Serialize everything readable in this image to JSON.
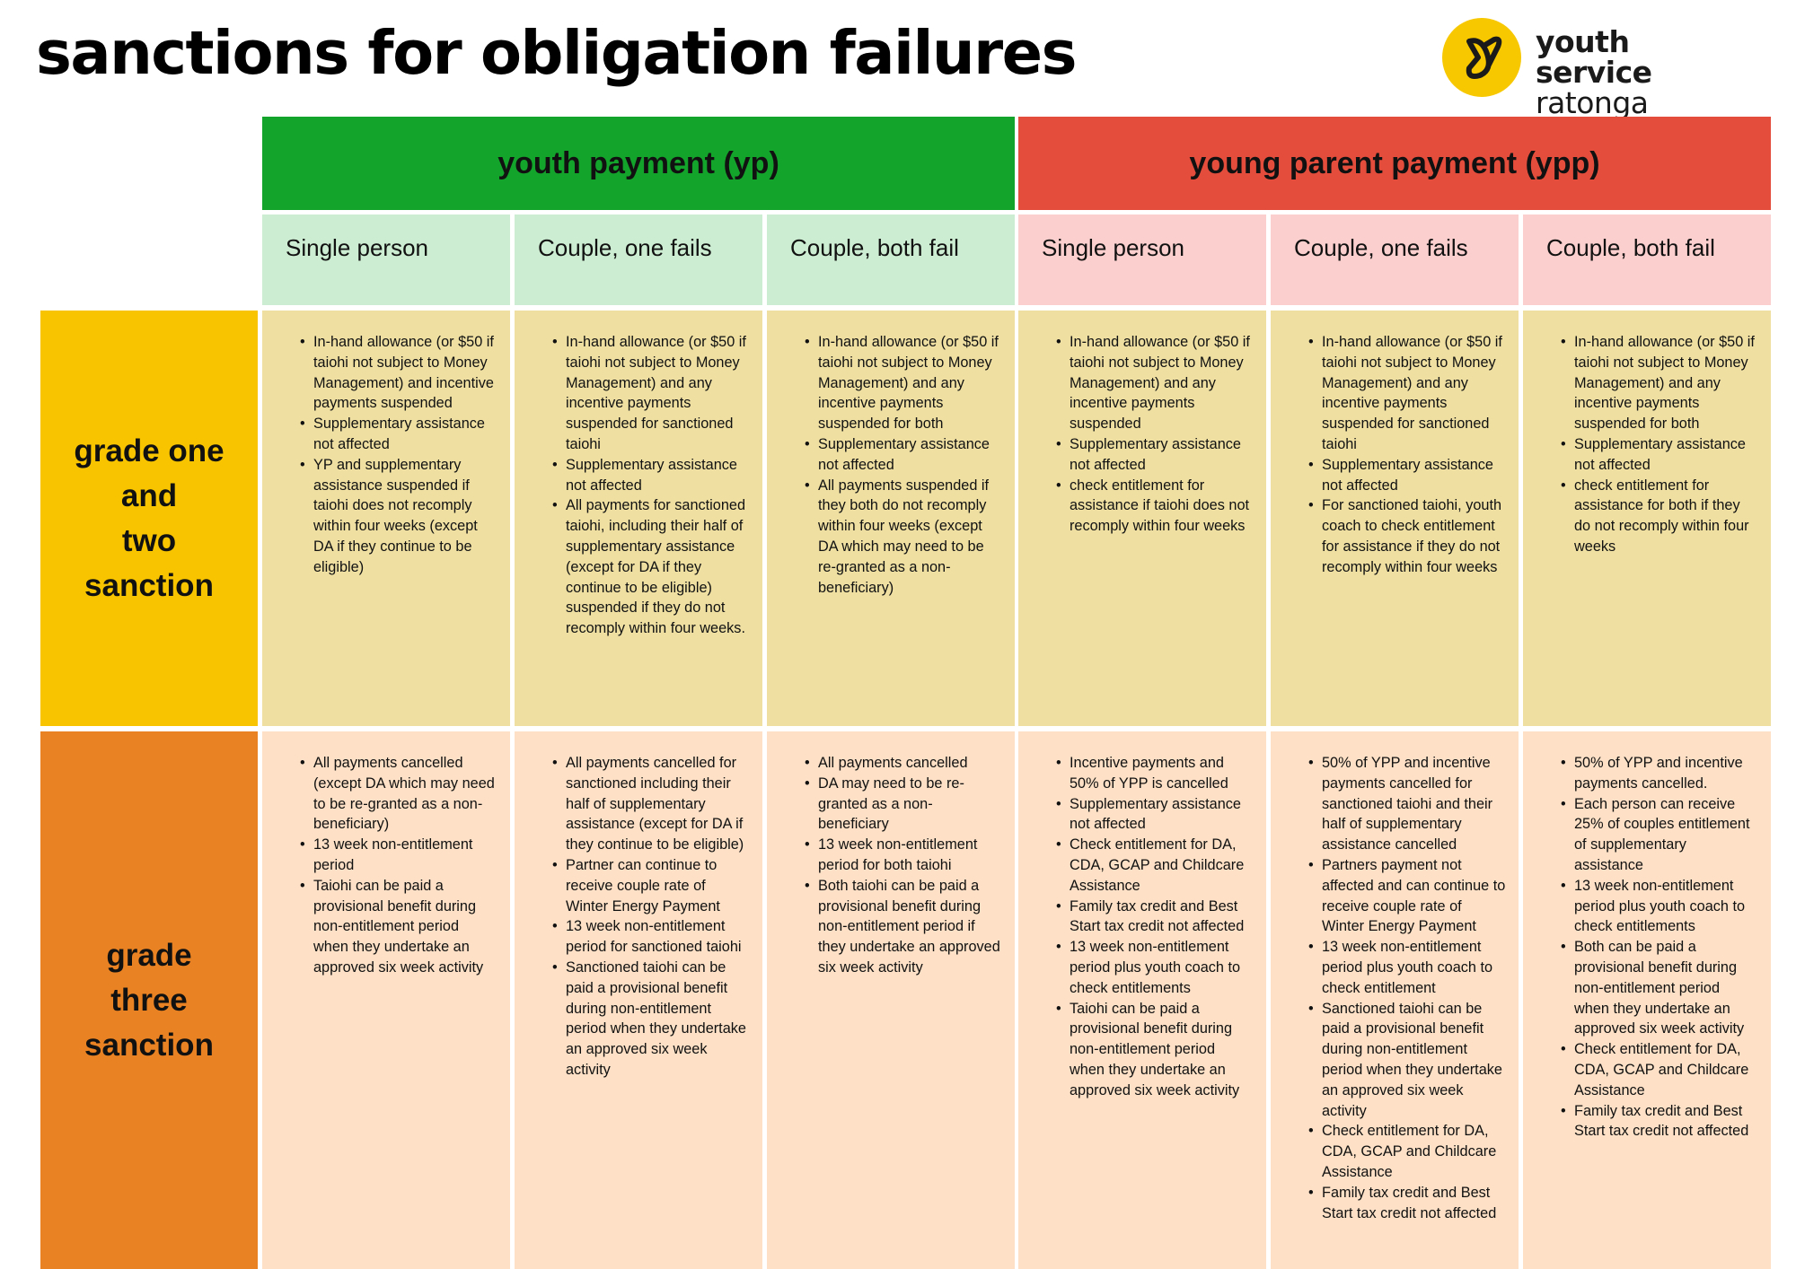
{
  "title": "sanctions for obligation failures",
  "logo": {
    "line1": "youth service",
    "line2": "ratonga taiohi",
    "icon": "youth-service-y-logo",
    "color": "#f7c800"
  },
  "bands": [
    {
      "label": "youth payment (yp)",
      "color": "#13a42c"
    },
    {
      "label": "young parent payment (ypp)",
      "color": "#e44d3c"
    }
  ],
  "columns": [
    "Single person",
    "Couple, one fails",
    "Couple, both fail",
    "Single person",
    "Couple, one fails",
    "Couple, both fail"
  ],
  "rows": [
    {
      "grade_lines": [
        "grade one",
        "and",
        "two",
        "sanction"
      ],
      "color": "#f8c400",
      "cells": [
        [
          "In-hand allowance (or $50 if taiohi not subject to Money Management) and incentive payments suspended",
          "Supplementary assistance not affected",
          "YP and supplementary assistance suspended if taiohi does not recomply within four weeks (except DA if they continue to be eligible)"
        ],
        [
          "In-hand allowance (or $50 if taiohi not subject to Money Management) and any incentive payments suspended for sanctioned taiohi",
          "Supplementary assistance not affected",
          "All payments for sanctioned taiohi, including their half of supplementary assistance (except for DA if they continue to be eligible) suspended if they do not recomply within four weeks."
        ],
        [
          "In-hand allowance (or $50 if taiohi not subject to Money Management) and any incentive payments suspended for both",
          "Supplementary assistance not affected",
          "All payments suspended if they both do not recomply within four weeks (except DA which may need to be re-granted as a non-beneficiary)"
        ],
        [
          "In-hand allowance (or $50 if taiohi not subject to Money Management) and any incentive payments suspended",
          "Supplementary assistance not affected",
          "check entitlement for assistance if taiohi does not recomply within four weeks"
        ],
        [
          "In-hand allowance (or $50 if taiohi not subject to Money Management) and any incentive payments suspended for sanctioned taiohi",
          "Supplementary assistance not affected",
          "For sanctioned taiohi, youth coach to check entitlement for assistance if they do not recomply within four weeks"
        ],
        [
          "In-hand allowance (or $50 if taiohi not subject to Money Management) and any incentive payments suspended for both",
          "Supplementary assistance not affected",
          "check entitlement for assistance for both if they do not recomply within four weeks"
        ]
      ]
    },
    {
      "grade_lines": [
        "grade",
        "three",
        "sanction"
      ],
      "color": "#e98222",
      "cells": [
        [
          "All payments cancelled (except DA which may need to be re-granted as a non-beneficiary)",
          "13 week non-entitlement period",
          "Taiohi can be paid a provisional benefit during non-entitlement period when they undertake an approved six week activity"
        ],
        [
          "All payments cancelled for sanctioned including their half of supplementary assistance  (except for DA if they continue to be eligible)",
          "Partner can continue to receive couple rate of Winter Energy Payment",
          "13 week non-entitlement period for sanctioned taiohi",
          "Sanctioned taiohi can be paid a provisional benefit during non-entitlement period when they undertake an approved six week activity"
        ],
        [
          "All payments cancelled",
          "DA may need to be re-granted as a non-beneficiary",
          "13 week non-entitlement period for both taiohi",
          "Both taiohi can be paid a provisional benefit during non-entitlement period if they undertake an approved six week activity"
        ],
        [
          "Incentive payments and 50% of YPP is cancelled",
          "Supplementary assistance not affected",
          "Check entitlement for DA, CDA, GCAP and Childcare Assistance",
          "Family tax credit and Best Start tax credit not affected",
          "13 week non-entitlement period plus youth coach to check entitlements",
          "Taiohi can be paid a provisional benefit during non-entitlement period when they undertake an approved six week activity"
        ],
        [
          "50% of YPP and incentive payments cancelled for sanctioned taiohi and their half of supplementary assistance cancelled",
          "Partners payment not affected and can continue to receive couple rate of Winter Energy Payment",
          "13 week non-entitlement period plus youth coach to check entitlement",
          "Sanctioned taiohi can be paid a provisional benefit during non-entitlement period when they undertake an approved six week activity",
          "Check entitlement for DA, CDA, GCAP and Childcare Assistance",
          "Family tax credit and Best Start tax credit not affected"
        ],
        [
          "50% of YPP and incentive payments cancelled.",
          "Each person can receive 25% of couples entitlement of supplementary assistance",
          "13 week non-entitlement period plus youth coach to check entitlements",
          "Both can be paid a provisional benefit during non-entitlement period when they undertake an approved six week activity",
          "Check entitlement for DA, CDA, GCAP and Childcare Assistance",
          "Family tax credit and Best Start tax credit not affected"
        ]
      ]
    }
  ]
}
